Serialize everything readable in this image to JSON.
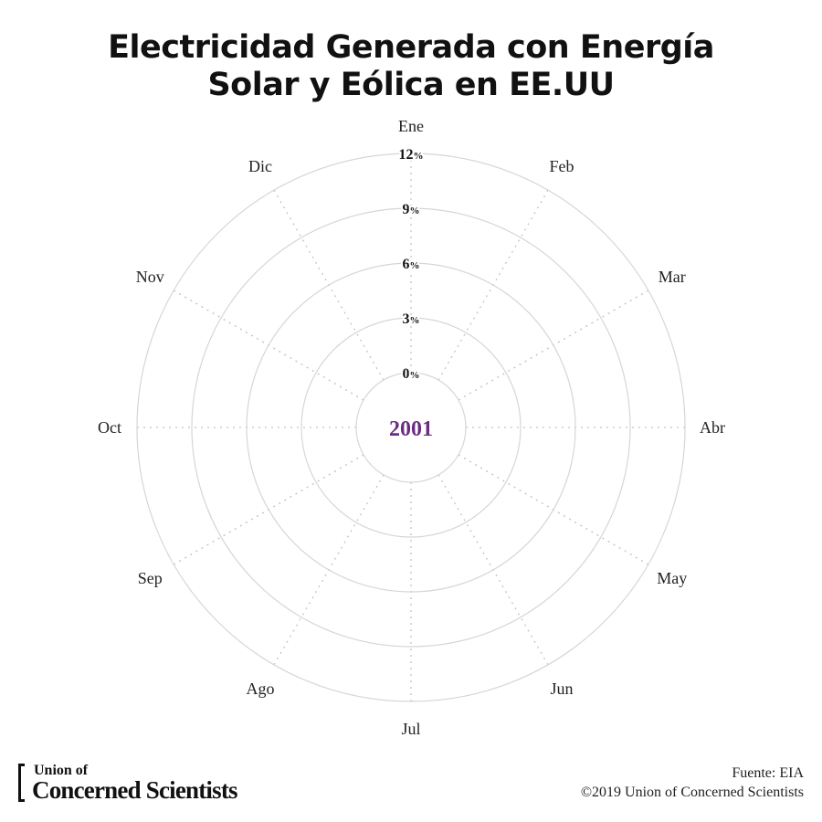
{
  "title": {
    "line1": "Electricidad Generada con Energía",
    "line2": "Solar y Eólica en EE.UU"
  },
  "chart_data": {
    "type": "radial",
    "title": "Electricidad Generada con Energía Solar y Eólica en EE.UU",
    "year": "2001",
    "categories": [
      "Ene",
      "Feb",
      "Mar",
      "Abr",
      "May",
      "Jun",
      "Jul",
      "Ago",
      "Sep",
      "Oct",
      "Nov",
      "Dic"
    ],
    "rlim": [
      0,
      12
    ],
    "radial_ticks": [
      {
        "value": "0",
        "unit": "%"
      },
      {
        "value": "3",
        "unit": "%"
      },
      {
        "value": "6",
        "unit": "%"
      },
      {
        "value": "9",
        "unit": "%"
      },
      {
        "value": "12",
        "unit": "%"
      }
    ],
    "series": [],
    "grid": true,
    "colors": {
      "year": "#6b2d80",
      "ring": "#d6d6d6",
      "spoke": "#c4c4c4"
    }
  },
  "footer": {
    "logo_line1": "Union of",
    "logo_line2": "Concerned Scientists",
    "source": "Fuente: EIA",
    "copyright": "©2019 Union of Concerned Scientists"
  }
}
